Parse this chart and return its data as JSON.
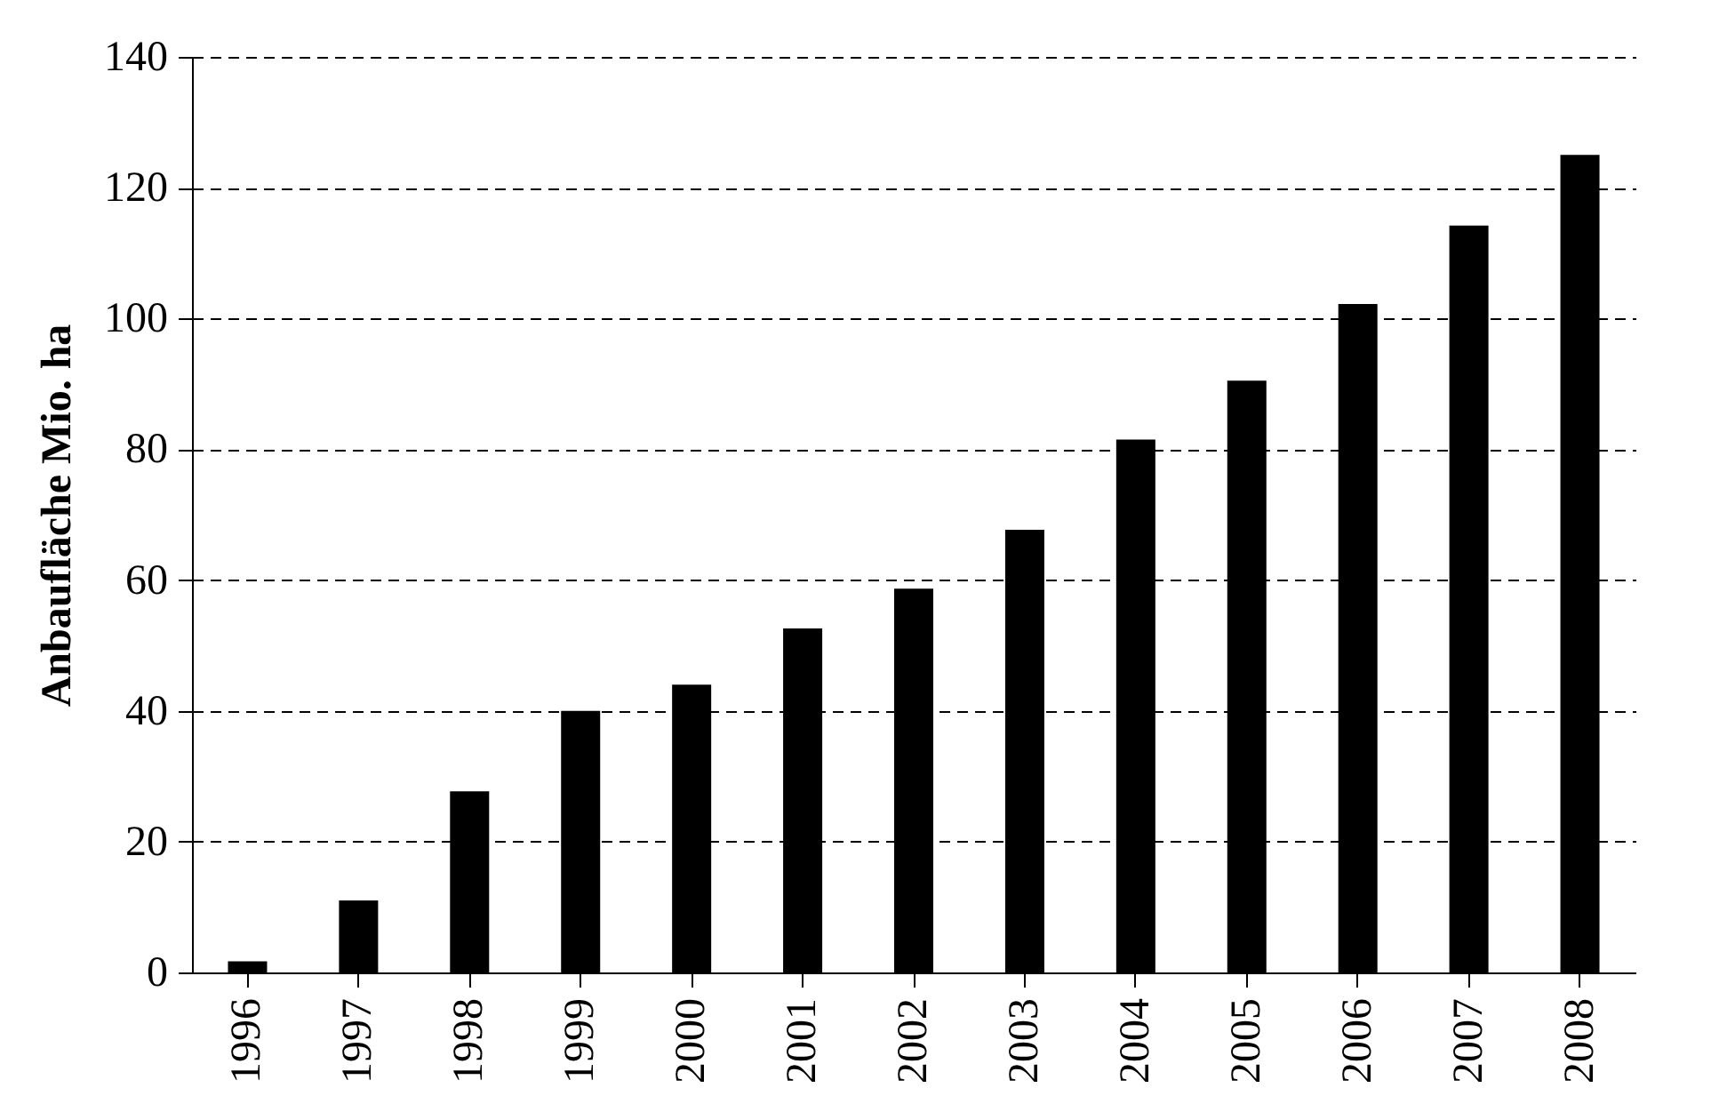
{
  "chart_data": {
    "type": "bar",
    "ylabel": "Anbaufläche  Mio. ha",
    "categories": [
      "1996",
      "1997",
      "1998",
      "1999",
      "2000",
      "2001",
      "2002",
      "2003",
      "2004",
      "2005",
      "2006",
      "2007",
      "2008"
    ],
    "values": [
      1.7,
      11,
      27.7,
      40,
      44,
      52.6,
      58.7,
      67.7,
      81.5,
      90.5,
      102.2,
      114.2,
      125
    ],
    "color": "#000000",
    "ylim": [
      0,
      140
    ],
    "yticks": [
      0,
      20,
      40,
      60,
      80,
      100,
      120,
      140
    ],
    "grid": "y"
  }
}
